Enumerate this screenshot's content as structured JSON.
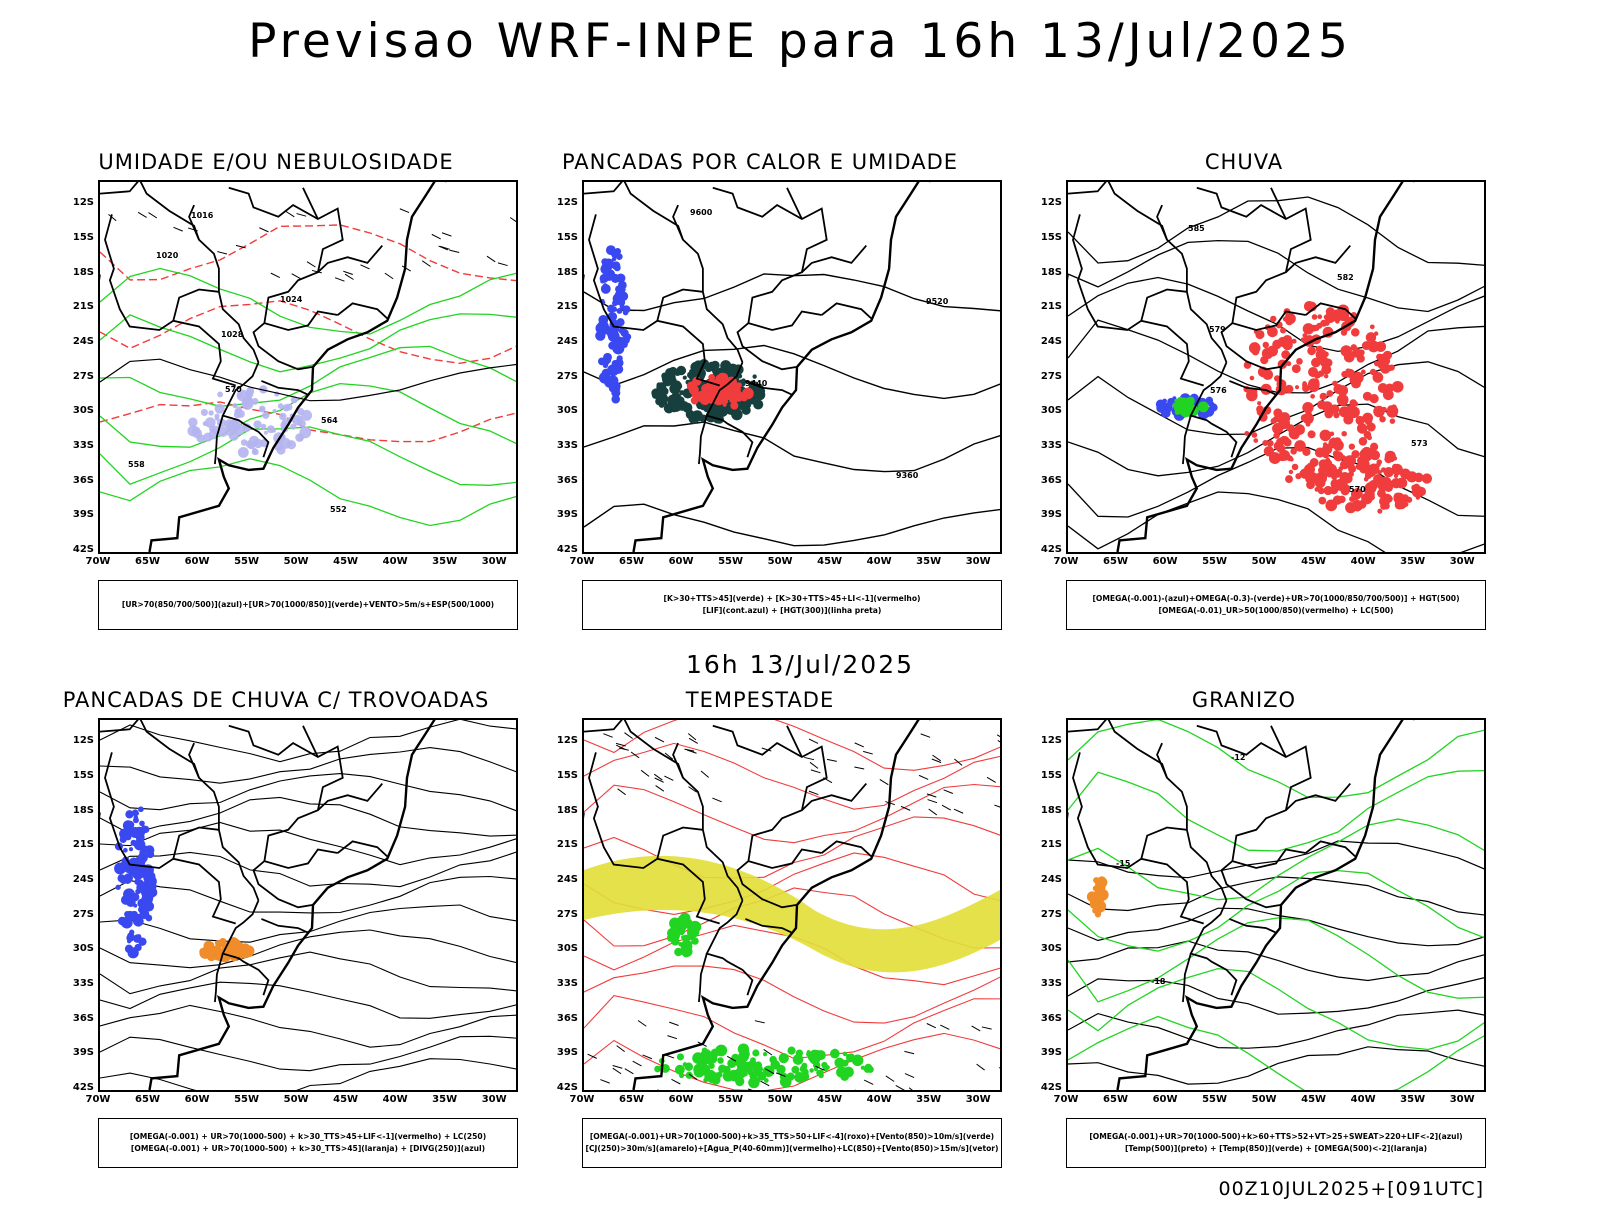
{
  "main_title": "Previsao WRF-INPE  para 16h 13/Jul/2025",
  "subtitle": "16h 13/Jul/2025",
  "footer": "00Z10JUL2025+[091UTC]",
  "lat_ticks": [
    "12S",
    "15S",
    "18S",
    "21S",
    "24S",
    "27S",
    "30S",
    "33S",
    "36S",
    "39S",
    "42S"
  ],
  "lon_ticks": [
    "70W",
    "65W",
    "60W",
    "55W",
    "50W",
    "45W",
    "40W",
    "35W",
    "30W"
  ],
  "colors": {
    "red": "#f03c3c",
    "green": "#22d422",
    "blue": "#3a48f0",
    "lavender": "#b4b4ef",
    "teal": "#173f3d",
    "yellow": "#e2de36",
    "orange": "#f08c2a"
  },
  "panels": [
    {
      "title": "UMIDADE E/OU NEBULOSIDADE",
      "legend": [
        "[UR>70(850/700/500)](azul)+[UR>70(1000/850)](verde)+VENTO>5m/s+ESP(500/1000)"
      ],
      "labels": [
        "1016",
        "1020",
        "1024",
        "1028",
        "570",
        "564",
        "558",
        "552"
      ]
    },
    {
      "title": "PANCADAS POR CALOR E UMIDADE",
      "legend": [
        "[K>30+TTS>45](verde) + [K>30+TTS>45+LI<-1](vermelho)",
        "[LIF](cont.azul) + [HGT(300)](linha preta)"
      ],
      "labels": [
        "9600",
        "9520",
        "9440",
        "9360"
      ]
    },
    {
      "title": "CHUVA",
      "legend": [
        "[OMEGA(-0.001)-(azul)+OMEGA(-0.3)-(verde)+UR>70(1000/850/700/500)] + HGT(500)",
        "[OMEGA(-0.01)_UR>50(1000/850)(vermelho) + LC(500)"
      ],
      "labels": [
        "585",
        "582",
        "579",
        "576",
        "573",
        "570"
      ]
    },
    {
      "title": "PANCADAS DE CHUVA C/ TROVOADAS",
      "legend": [
        "[OMEGA(-0.001) + UR>70(1000-500) + k>30_TTS>45+LIF<-1](vermelho) + LC(250)",
        "[OMEGA(-0.001) + UR>70(1000-500) + k>30_TTS>45](laranja) + [DIVG(250)](azul)"
      ],
      "labels": []
    },
    {
      "title": "TEMPESTADE",
      "legend": [
        "[OMEGA(-0.001)+UR>70(1000-500)+k>35_TTS>50+LIF<-4](roxo)+[Vento(850)>10m/s](verde)",
        "[CJ(250)>30m/s](amarelo)+[Agua_P(40-60mm)](vermelho)+LC(850)+[Vento(850)>15m/s](vetor)"
      ],
      "labels": []
    },
    {
      "title": "GRANIZO",
      "legend": [
        "[OMEGA(-0.001)+UR>70(1000-500)+k>60+TTS>52+VT>25+SWEAT>220+LIF<-2](azul)",
        "[Temp(500)](preto) + [Temp(850)](verde) + [OMEGA(500)<-2](laranja)"
      ],
      "labels": [
        "-12",
        "-15",
        "-18"
      ]
    }
  ]
}
